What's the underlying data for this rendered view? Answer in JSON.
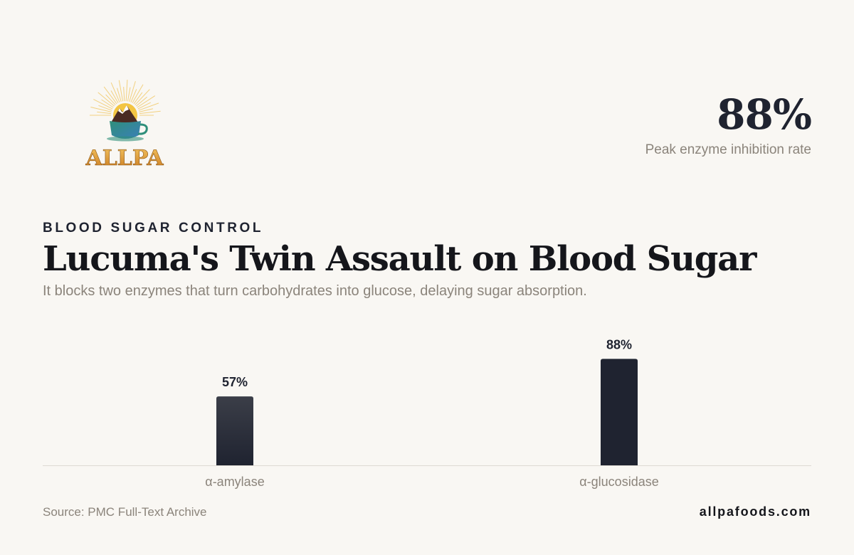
{
  "brand": {
    "logo_text": "ALLPA",
    "logo_icon": "sun-mountain-cup-icon"
  },
  "stat": {
    "value": "88%",
    "label": "Peak enzyme inhibition rate"
  },
  "header": {
    "eyebrow": "BLOOD SUGAR CONTROL",
    "title": "Lucuma's Twin Assault on Blood Sugar",
    "subtitle": "It blocks two enzymes that turn carbohydrates into glucose, delaying sugar absorption."
  },
  "footer": {
    "source": "Source: PMC Full-Text Archive",
    "site": "allpafoods.com"
  },
  "colors": {
    "background": "#f9f7f3",
    "bar_dark": "#1f2330",
    "bar_light": "#3b3e48",
    "muted_text": "#8b847b"
  },
  "chart_data": {
    "type": "bar",
    "categories": [
      "α-amylase",
      "α-glucosidase"
    ],
    "values": [
      57,
      88
    ],
    "value_labels": [
      "57%",
      "88%"
    ],
    "unit": "%",
    "ylim": [
      0,
      100
    ],
    "grid": false,
    "legend": "none"
  }
}
